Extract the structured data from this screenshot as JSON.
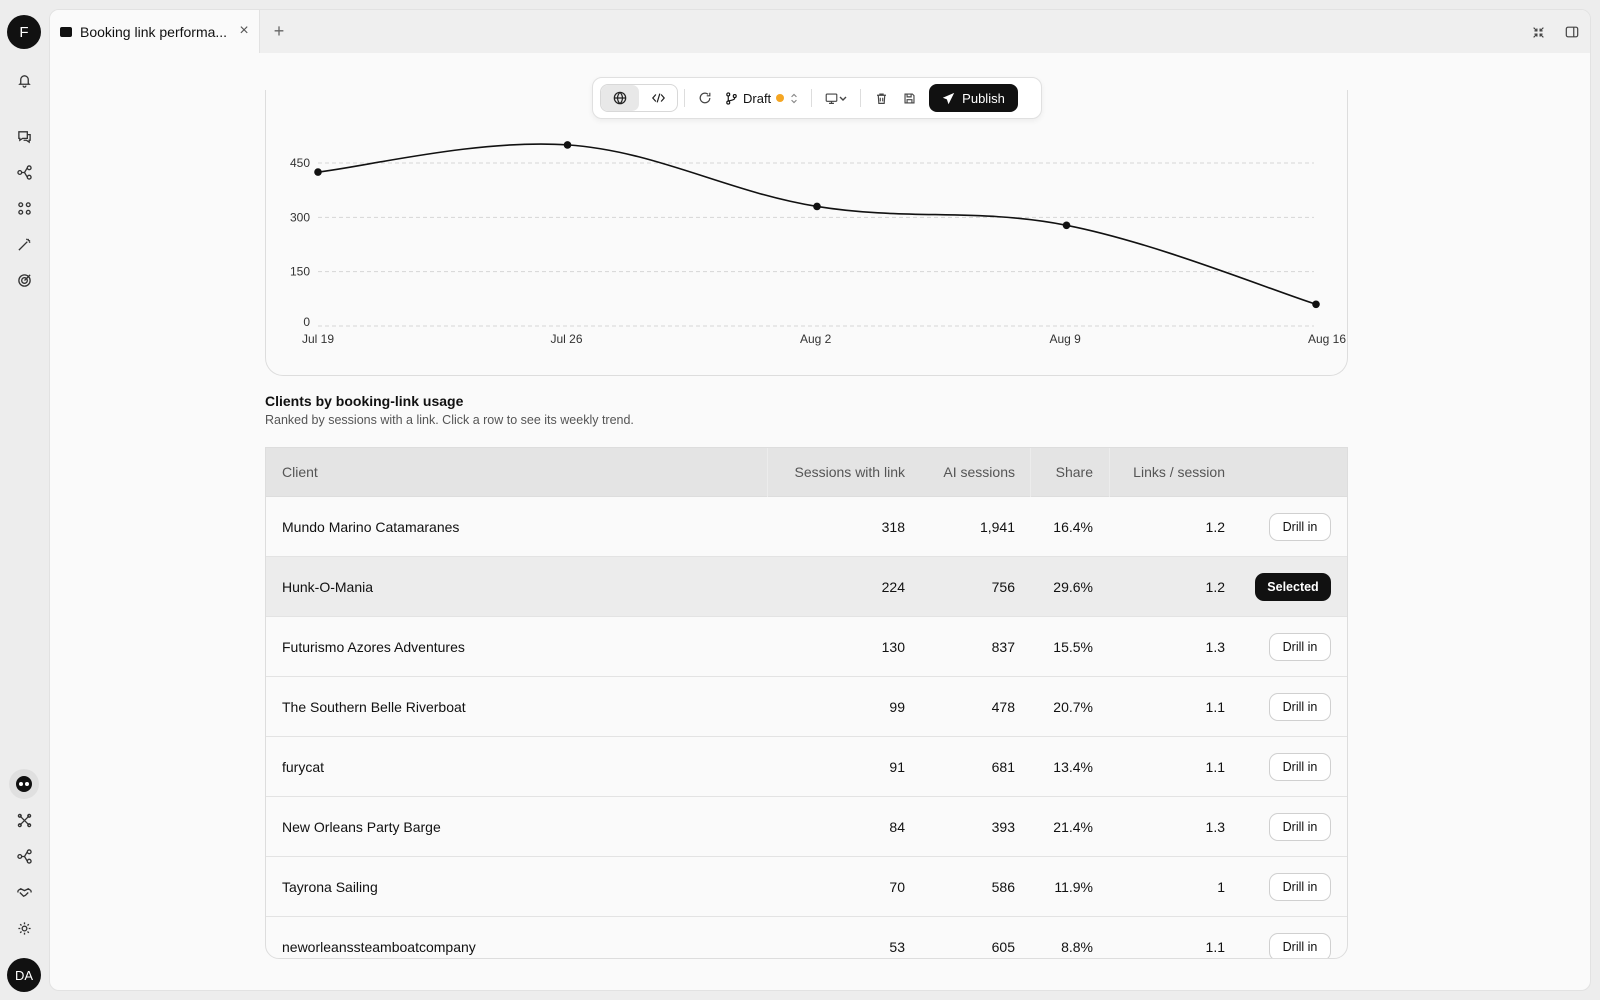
{
  "rail": {
    "top_avatar": "F",
    "bottom_avatar": "DA"
  },
  "tab": {
    "title": "Booking link performa...",
    "close": "×",
    "new_tab": "+"
  },
  "toolbar": {
    "branch_label": "Draft",
    "publish_label": "Publish",
    "draft_dot_color": "#f5a623"
  },
  "chart_data": {
    "type": "line",
    "x": [
      "Jul 19",
      "Jul 26",
      "Aug 2",
      "Aug 9",
      "Aug 16"
    ],
    "series": [
      {
        "values": [
          425,
          500,
          330,
          278,
          60
        ]
      }
    ],
    "yticks": [
      "0",
      "150",
      "300",
      "450"
    ],
    "xlabel": "",
    "ylabel": "",
    "title": "",
    "grid": true,
    "line_color": "#111111"
  },
  "section": {
    "title": "Clients by booking-link usage",
    "subtitle": "Ranked by sessions with a link. Click a row to see its weekly trend."
  },
  "table": {
    "headers": [
      "Client",
      "Sessions with link",
      "AI sessions",
      "Share",
      "Links / session"
    ],
    "drill_label": "Drill in",
    "selected_label": "Selected",
    "rows": [
      {
        "client": "Mundo Marino Catamaranes",
        "sessions": "318",
        "ai": "1,941",
        "share": "16.4%",
        "links": "1.2",
        "action": "Drill in"
      },
      {
        "client": "Hunk-O-Mania",
        "sessions": "224",
        "ai": "756",
        "share": "29.6%",
        "links": "1.2",
        "action": "Selected"
      },
      {
        "client": "Futurismo Azores Adventures",
        "sessions": "130",
        "ai": "837",
        "share": "15.5%",
        "links": "1.3",
        "action": "Drill in"
      },
      {
        "client": "The Southern Belle Riverboat",
        "sessions": "99",
        "ai": "478",
        "share": "20.7%",
        "links": "1.1",
        "action": "Drill in"
      },
      {
        "client": "furycat",
        "sessions": "91",
        "ai": "681",
        "share": "13.4%",
        "links": "1.1",
        "action": "Drill in"
      },
      {
        "client": "New Orleans Party Barge",
        "sessions": "84",
        "ai": "393",
        "share": "21.4%",
        "links": "1.3",
        "action": "Drill in"
      },
      {
        "client": "Tayrona Sailing",
        "sessions": "70",
        "ai": "586",
        "share": "11.9%",
        "links": "1",
        "action": "Drill in"
      },
      {
        "client": "neworleanssteamboatcompany",
        "sessions": "53",
        "ai": "605",
        "share": "8.8%",
        "links": "1.1",
        "action": "Drill in"
      }
    ]
  }
}
